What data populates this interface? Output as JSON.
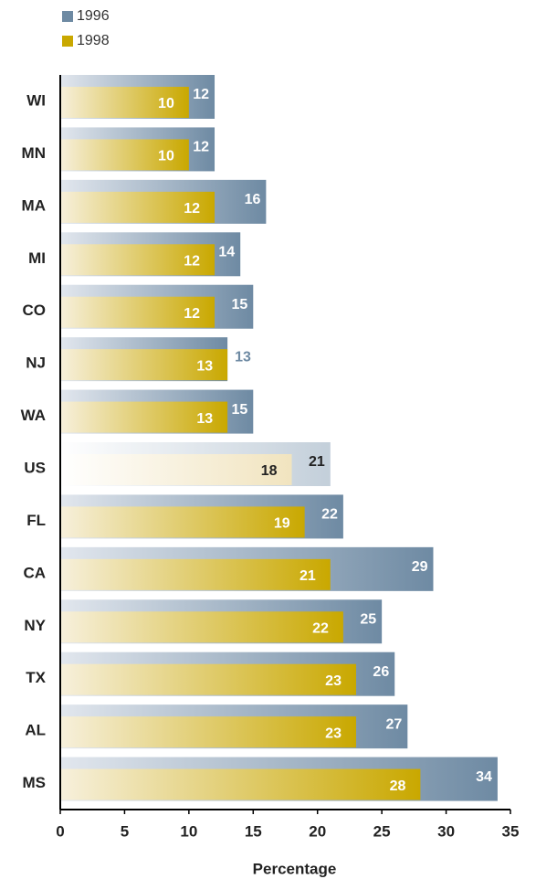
{
  "chart_data": {
    "type": "bar",
    "orientation": "horizontal",
    "x_label": "Percentage",
    "categories": [
      "WI",
      "MN",
      "MA",
      "MI",
      "CO",
      "NJ",
      "WA",
      "US",
      "FL",
      "CA",
      "NY",
      "TX",
      "AL",
      "MS"
    ],
    "series": [
      {
        "name": "1996",
        "color": "#6e8aa3",
        "values": [
          12,
          12,
          16,
          14,
          15,
          13,
          15,
          21,
          22,
          29,
          25,
          26,
          27,
          34
        ]
      },
      {
        "name": "1998",
        "color": "#c9a800",
        "values": [
          10,
          10,
          12,
          12,
          12,
          13,
          13,
          18,
          19,
          21,
          22,
          23,
          23,
          28
        ]
      }
    ],
    "highlight": "US",
    "xlim": [
      0,
      35
    ],
    "xticks": [
      0,
      5,
      10,
      15,
      20,
      25,
      30,
      35
    ]
  }
}
